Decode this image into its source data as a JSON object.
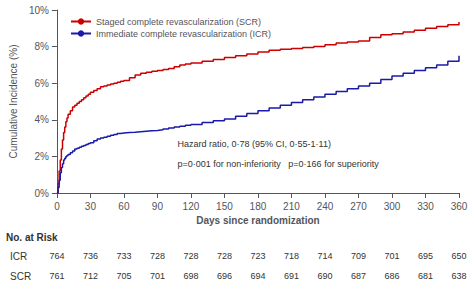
{
  "chart_data": {
    "type": "step",
    "xlabel": "Days since randomization",
    "ylabel": "Cumulative Incidence (%)",
    "x": [
      0,
      1,
      2,
      3,
      4,
      5,
      6,
      7,
      8,
      9,
      10,
      12,
      14,
      16,
      18,
      20,
      22,
      24,
      26,
      28,
      30,
      33,
      36,
      39,
      42,
      45,
      48,
      51,
      54,
      57,
      60,
      65,
      70,
      75,
      80,
      85,
      90,
      95,
      100,
      105,
      110,
      115,
      120,
      130,
      140,
      150,
      160,
      170,
      180,
      190,
      200,
      210,
      220,
      230,
      240,
      250,
      260,
      270,
      280,
      290,
      300,
      310,
      320,
      330,
      340,
      350,
      360
    ],
    "series": [
      {
        "name": "Staged complete revascularization (SCR)",
        "color": "#cc0000",
        "values": [
          0,
          0.5,
          1.2,
          1.8,
          2.4,
          2.9,
          3.3,
          3.6,
          3.9,
          4.1,
          4.3,
          4.5,
          4.7,
          4.8,
          4.9,
          5.0,
          5.1,
          5.2,
          5.3,
          5.4,
          5.5,
          5.6,
          5.7,
          5.8,
          5.85,
          5.9,
          5.95,
          6.0,
          6.05,
          6.1,
          6.15,
          6.3,
          6.45,
          6.55,
          6.6,
          6.65,
          6.7,
          6.75,
          6.8,
          6.9,
          7.0,
          7.05,
          7.1,
          7.2,
          7.3,
          7.4,
          7.5,
          7.6,
          7.7,
          7.8,
          7.85,
          7.9,
          7.95,
          8.0,
          8.1,
          8.2,
          8.25,
          8.3,
          8.5,
          8.65,
          8.7,
          8.8,
          8.9,
          9.0,
          9.1,
          9.2,
          9.35
        ]
      },
      {
        "name": "Immediate complete revascularization (ICR)",
        "color": "#1a1aaa",
        "values": [
          0,
          0.3,
          0.7,
          1.1,
          1.4,
          1.6,
          1.8,
          1.9,
          2.0,
          2.05,
          2.1,
          2.2,
          2.3,
          2.4,
          2.45,
          2.5,
          2.55,
          2.6,
          2.65,
          2.7,
          2.75,
          2.85,
          2.95,
          3.0,
          3.05,
          3.1,
          3.15,
          3.2,
          3.25,
          3.28,
          3.3,
          3.32,
          3.35,
          3.38,
          3.4,
          3.42,
          3.45,
          3.5,
          3.55,
          3.6,
          3.65,
          3.7,
          3.75,
          3.85,
          3.95,
          4.05,
          4.2,
          4.35,
          4.5,
          4.65,
          4.8,
          4.95,
          5.1,
          5.25,
          5.4,
          5.55,
          5.7,
          5.85,
          6.0,
          6.2,
          6.4,
          6.55,
          6.7,
          6.85,
          7.0,
          7.2,
          7.5
        ]
      }
    ],
    "xlim": [
      0,
      360
    ],
    "xticks": [
      0,
      30,
      60,
      90,
      120,
      150,
      180,
      210,
      240,
      270,
      300,
      330,
      360
    ],
    "ylim": [
      0,
      10
    ],
    "yticks": [
      {
        "value": 0,
        "label": "0%"
      },
      {
        "value": 2,
        "label": "2%"
      },
      {
        "value": 4,
        "label": "4%"
      },
      {
        "value": 6,
        "label": "6%"
      },
      {
        "value": 8,
        "label": "8%"
      },
      {
        "value": 10,
        "label": "10%"
      }
    ],
    "grid": false,
    "legend": "upper left",
    "annotations": [
      "Hazard ratio, 0·78 (95% CI, 0·55-1·11)",
      "p=0·001 for non-inferiority   p=0·166 for superiority"
    ],
    "risk_table": {
      "label": "No. at Risk",
      "x": [
        0,
        30,
        60,
        90,
        120,
        150,
        180,
        210,
        240,
        270,
        300,
        330,
        360
      ],
      "rows": [
        {
          "label": "ICR",
          "values": [
            764,
            736,
            733,
            728,
            728,
            728,
            723,
            718,
            714,
            709,
            701,
            695,
            650
          ]
        },
        {
          "label": "SCR",
          "values": [
            761,
            712,
            705,
            701,
            698,
            696,
            694,
            691,
            690,
            687,
            686,
            681,
            638
          ]
        }
      ]
    }
  }
}
